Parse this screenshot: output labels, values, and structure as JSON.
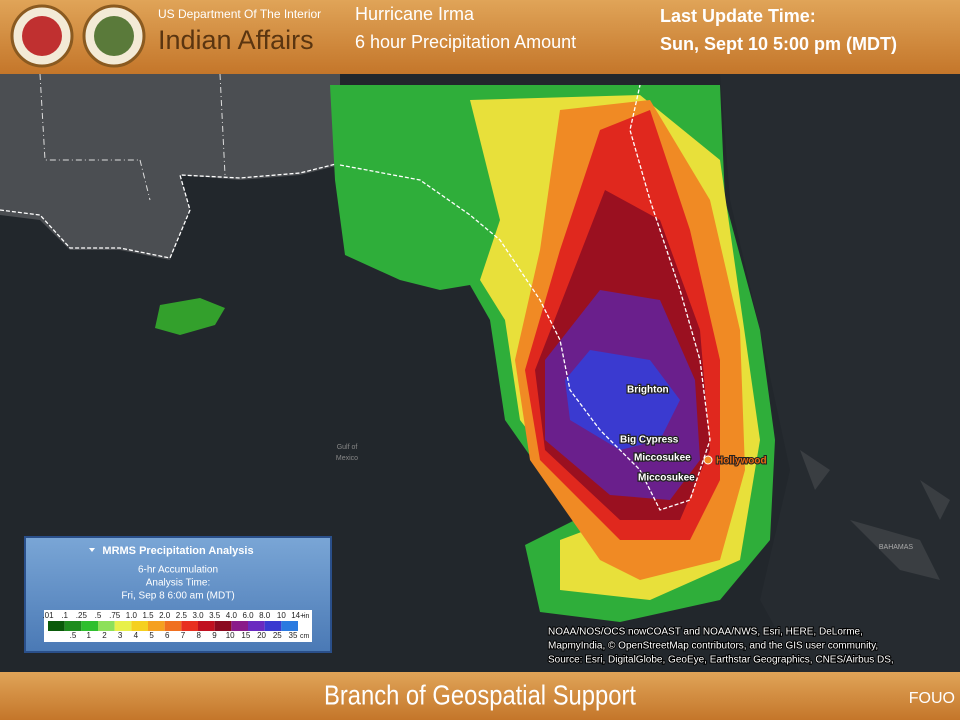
{
  "header": {
    "agency_line1": "US Department Of The Interior",
    "agency_line2": "Indian Affairs",
    "title_line1": "Hurricane Irma",
    "title_line2": "6 hour Precipitation Amount",
    "update_label": "Last Update Time:",
    "update_time": "Sun, Sept 10 5:00 pm (MDT)"
  },
  "map": {
    "labels": [
      "Brighton",
      "Big Cypress",
      "Miccosukee",
      "Hollywood",
      "Miccosukee",
      "Gulf of",
      "Mexico",
      "BAHAMAS"
    ],
    "attribution": [
      "NOAA/NOS/OCS nowCOAST and NOAA/NWS, Esri, HERE, DeLorme,",
      "MapmyIndia, © OpenStreetMap contributors, and the GIS user community,",
      "Source: Esri, DigitalGlobe, GeoEye, Earthstar Geographics, CNES/Airbus DS,"
    ]
  },
  "legend": {
    "title": "MRMS Precipitation Analysis",
    "line1": "6-hr Accumulation",
    "line2": "Analysis Time:",
    "line3": "Fri, Sep 8 6:00 am (MDT)",
    "inches": [
      ".01",
      ".1",
      ".25",
      ".5",
      ".75",
      "1.0",
      "1.5",
      "2.0",
      "2.5",
      "3.0",
      "3.5",
      "4.0",
      "6.0",
      "8.0",
      "10",
      "14+"
    ],
    "inch_unit": "in",
    "cm": [
      ".5",
      "1",
      "2",
      "3",
      "4",
      "5",
      "6",
      "7",
      "8",
      "9",
      "10",
      "15",
      "20",
      "25",
      "35"
    ],
    "cm_unit": "cm"
  },
  "footer": {
    "title": "Branch of Geospatial Support",
    "marking": "FOUO"
  }
}
